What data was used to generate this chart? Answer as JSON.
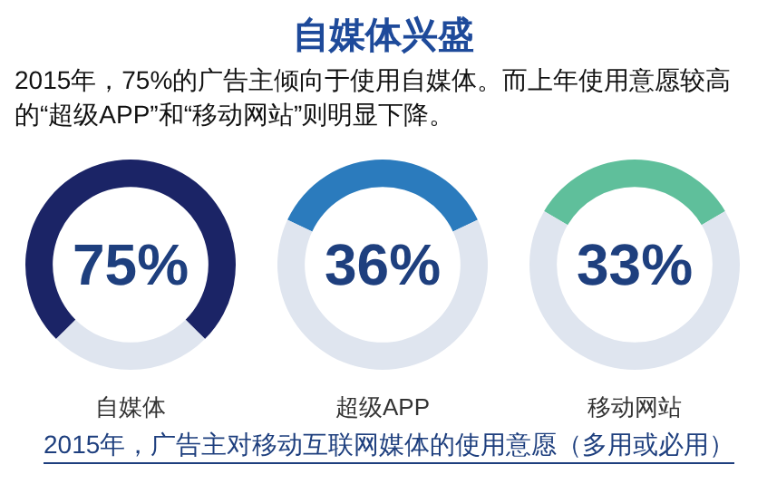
{
  "chart_data": [
    {
      "type": "other",
      "title": "自媒体兴盛",
      "subtitle": "2015年，75%的广告主倾向于使用自媒体。而上年使用意愿较高的“超级APP”和“移动网站”则明显下降。"
    },
    {
      "type": "donut",
      "title": "自媒体",
      "categories": [
        null,
        null
      ],
      "values": [
        75,
        25
      ],
      "colors": [
        "#1b2466",
        "#dfe5ef"
      ],
      "value_labels": [
        "75%",
        null
      ]
    },
    {
      "type": "donut",
      "title": "超级APP",
      "categories": [
        null,
        null
      ],
      "values": [
        36,
        64
      ],
      "colors": [
        "#2b7bbd",
        "#dfe5ef"
      ],
      "value_labels": [
        "36%",
        null
      ]
    },
    {
      "type": "donut",
      "title": "移动网站",
      "categories": [
        null,
        null
      ],
      "values": [
        33,
        67
      ],
      "colors": [
        "#5fbf9b",
        "#dfe5ef"
      ],
      "value_labels": [
        "33%",
        null
      ]
    },
    {
      "type": "other",
      "annotations": [
        "2015年，广告主对移动互联网媒体的使用意愿（多用或必用）"
      ]
    }
  ]
}
